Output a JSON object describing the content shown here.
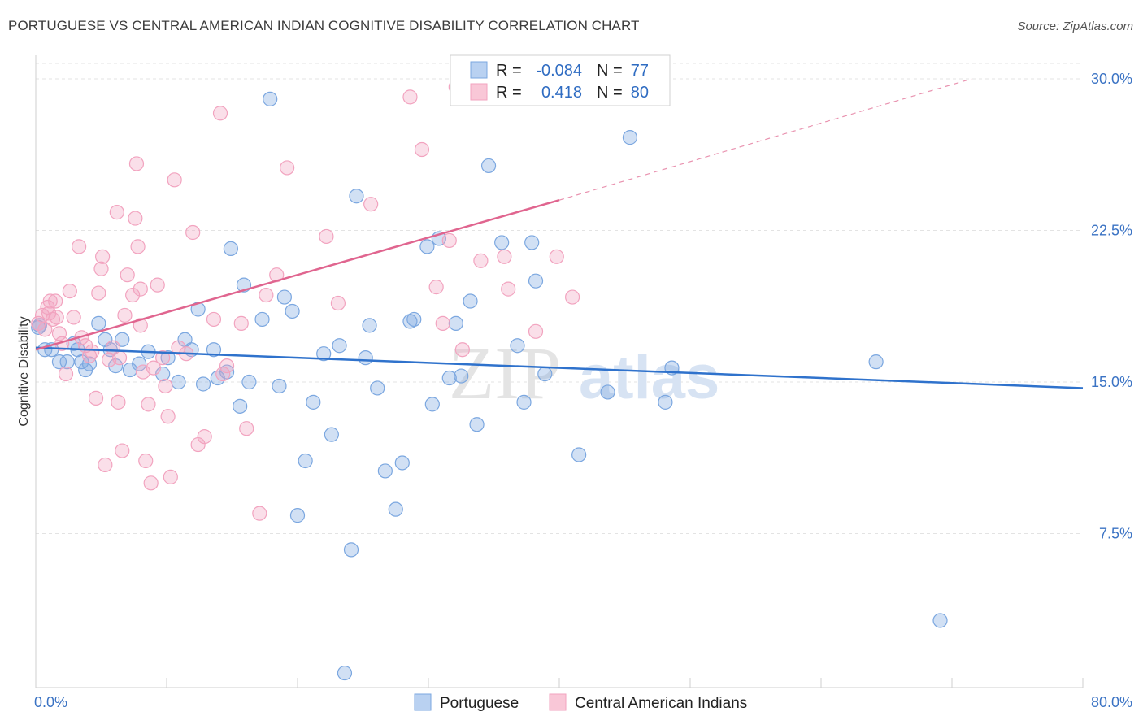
{
  "header": {
    "title": "PORTUGUESE VS CENTRAL AMERICAN INDIAN COGNITIVE DISABILITY CORRELATION CHART",
    "source": "Source: ZipAtlas.com"
  },
  "watermark": {
    "part1": "ZIP",
    "part2": "atlas"
  },
  "chart_data": {
    "type": "scatter",
    "ylabel": "Cognitive Disability",
    "xlim": [
      0,
      80
    ],
    "ylim": [
      0,
      31
    ],
    "x_tick_labels": [
      "0.0%",
      "80.0%"
    ],
    "y_ticks": [
      7.5,
      15.0,
      22.5,
      30.0
    ],
    "y_tick_labels": [
      "7.5%",
      "15.0%",
      "22.5%",
      "30.0%"
    ],
    "grid": true,
    "legend_position": "top-center",
    "stats": [
      {
        "r_label": "R =",
        "r_value": "-0.084",
        "n_label": "N =",
        "n_value": "77"
      },
      {
        "r_label": "R =",
        "r_value": "0.418",
        "n_label": "N =",
        "n_value": "80"
      }
    ],
    "series": [
      {
        "name": "Portuguese",
        "color": "#7ba7e0",
        "line_color": "#2f72cc",
        "trend": {
          "x": [
            0,
            80
          ],
          "y": [
            16.7,
            14.7
          ]
        },
        "points": [
          [
            0.3,
            17.8
          ],
          [
            0.7,
            16.6
          ],
          [
            1.2,
            16.6
          ],
          [
            1.8,
            16.0
          ],
          [
            2.4,
            16.0
          ],
          [
            3.2,
            16.6
          ],
          [
            3.5,
            16.0
          ],
          [
            3.8,
            15.6
          ],
          [
            4.1,
            15.9
          ],
          [
            4.8,
            17.9
          ],
          [
            5.3,
            17.1
          ],
          [
            5.7,
            16.6
          ],
          [
            6.1,
            15.8
          ],
          [
            6.6,
            17.1
          ],
          [
            7.2,
            15.6
          ],
          [
            7.9,
            15.9
          ],
          [
            8.6,
            16.5
          ],
          [
            9.7,
            15.4
          ],
          [
            10.1,
            16.2
          ],
          [
            10.9,
            15.0
          ],
          [
            11.4,
            17.1
          ],
          [
            11.9,
            16.6
          ],
          [
            12.4,
            18.6
          ],
          [
            12.8,
            14.9
          ],
          [
            13.6,
            16.6
          ],
          [
            13.9,
            15.2
          ],
          [
            14.6,
            15.5
          ],
          [
            14.9,
            21.6
          ],
          [
            15.6,
            13.8
          ],
          [
            15.9,
            19.8
          ],
          [
            16.3,
            15.0
          ],
          [
            17.3,
            18.1
          ],
          [
            17.9,
            29.0
          ],
          [
            18.6,
            14.8
          ],
          [
            19.0,
            19.2
          ],
          [
            19.6,
            18.5
          ],
          [
            20.0,
            8.4
          ],
          [
            20.6,
            11.1
          ],
          [
            21.2,
            14.0
          ],
          [
            22.0,
            16.4
          ],
          [
            22.6,
            12.4
          ],
          [
            23.2,
            16.8
          ],
          [
            23.6,
            0.6
          ],
          [
            24.1,
            6.7
          ],
          [
            24.5,
            24.2
          ],
          [
            25.2,
            16.2
          ],
          [
            25.5,
            17.8
          ],
          [
            26.1,
            14.7
          ],
          [
            26.7,
            10.6
          ],
          [
            27.5,
            8.7
          ],
          [
            28.0,
            11.0
          ],
          [
            28.6,
            18.0
          ],
          [
            28.9,
            18.1
          ],
          [
            29.9,
            21.7
          ],
          [
            30.3,
            13.9
          ],
          [
            30.8,
            22.1
          ],
          [
            31.6,
            15.2
          ],
          [
            32.1,
            17.9
          ],
          [
            32.5,
            15.3
          ],
          [
            33.2,
            19.0
          ],
          [
            33.7,
            12.9
          ],
          [
            34.6,
            25.7
          ],
          [
            35.6,
            21.9
          ],
          [
            36.8,
            16.8
          ],
          [
            37.3,
            14.0
          ],
          [
            37.9,
            21.9
          ],
          [
            38.2,
            20.0
          ],
          [
            38.9,
            15.4
          ],
          [
            41.5,
            11.4
          ],
          [
            43.7,
            14.5
          ],
          [
            45.4,
            27.1
          ],
          [
            48.1,
            14.0
          ],
          [
            48.6,
            15.7
          ],
          [
            64.2,
            16.0
          ],
          [
            69.1,
            3.2
          ],
          [
            0.2,
            17.7
          ],
          [
            2.9,
            16.9
          ]
        ]
      },
      {
        "name": "Central American Indians",
        "color": "#f2a3bf",
        "line_color": "#e0658f",
        "trend": {
          "x": [
            0,
            40
          ],
          "y": [
            16.6,
            24.0
          ]
        },
        "trend_dashed": {
          "x": [
            40,
            71.5
          ],
          "y": [
            24.0,
            30.0
          ]
        },
        "points": [
          [
            0.2,
            17.9
          ],
          [
            0.5,
            18.3
          ],
          [
            0.7,
            17.6
          ],
          [
            0.9,
            18.7
          ],
          [
            1.1,
            19.0
          ],
          [
            1.3,
            18.1
          ],
          [
            1.5,
            19.0
          ],
          [
            1.6,
            18.2
          ],
          [
            1.8,
            17.4
          ],
          [
            2.0,
            16.9
          ],
          [
            2.3,
            15.4
          ],
          [
            2.6,
            19.5
          ],
          [
            2.9,
            18.2
          ],
          [
            3.3,
            21.7
          ],
          [
            3.5,
            17.2
          ],
          [
            3.8,
            16.8
          ],
          [
            4.1,
            16.3
          ],
          [
            4.3,
            16.5
          ],
          [
            4.6,
            14.2
          ],
          [
            4.8,
            19.4
          ],
          [
            5.0,
            20.6
          ],
          [
            5.1,
            21.2
          ],
          [
            5.3,
            10.9
          ],
          [
            5.6,
            16.1
          ],
          [
            5.9,
            16.7
          ],
          [
            6.2,
            23.4
          ],
          [
            6.4,
            16.2
          ],
          [
            6.6,
            11.6
          ],
          [
            6.8,
            18.3
          ],
          [
            7.0,
            20.3
          ],
          [
            7.4,
            19.3
          ],
          [
            7.6,
            23.1
          ],
          [
            7.8,
            21.7
          ],
          [
            8.0,
            19.6
          ],
          [
            8.2,
            15.5
          ],
          [
            8.4,
            11.1
          ],
          [
            8.6,
            13.9
          ],
          [
            8.8,
            10.0
          ],
          [
            9.0,
            15.7
          ],
          [
            9.3,
            19.8
          ],
          [
            9.7,
            16.2
          ],
          [
            9.9,
            14.8
          ],
          [
            10.1,
            13.3
          ],
          [
            10.3,
            10.3
          ],
          [
            10.6,
            25.0
          ],
          [
            10.9,
            16.7
          ],
          [
            11.5,
            16.4
          ],
          [
            12.0,
            22.4
          ],
          [
            12.4,
            11.9
          ],
          [
            12.9,
            12.3
          ],
          [
            13.6,
            18.1
          ],
          [
            14.3,
            15.4
          ],
          [
            14.6,
            15.8
          ],
          [
            15.7,
            17.9
          ],
          [
            16.1,
            12.7
          ],
          [
            17.1,
            8.5
          ],
          [
            17.6,
            19.3
          ],
          [
            18.4,
            20.3
          ],
          [
            19.2,
            25.6
          ],
          [
            22.2,
            22.2
          ],
          [
            23.1,
            18.9
          ],
          [
            25.6,
            23.8
          ],
          [
            28.6,
            29.1
          ],
          [
            29.5,
            26.5
          ],
          [
            30.6,
            19.7
          ],
          [
            31.1,
            17.9
          ],
          [
            31.6,
            22.0
          ],
          [
            32.1,
            29.6
          ],
          [
            32.6,
            16.6
          ],
          [
            34.0,
            21.0
          ],
          [
            35.8,
            21.2
          ],
          [
            38.2,
            17.5
          ],
          [
            39.8,
            21.2
          ],
          [
            41.0,
            19.2
          ],
          [
            36.1,
            19.6
          ],
          [
            7.7,
            25.8
          ],
          [
            14.1,
            28.3
          ],
          [
            6.3,
            14.0
          ],
          [
            8.0,
            17.8
          ],
          [
            1.0,
            18.4
          ]
        ]
      }
    ]
  }
}
